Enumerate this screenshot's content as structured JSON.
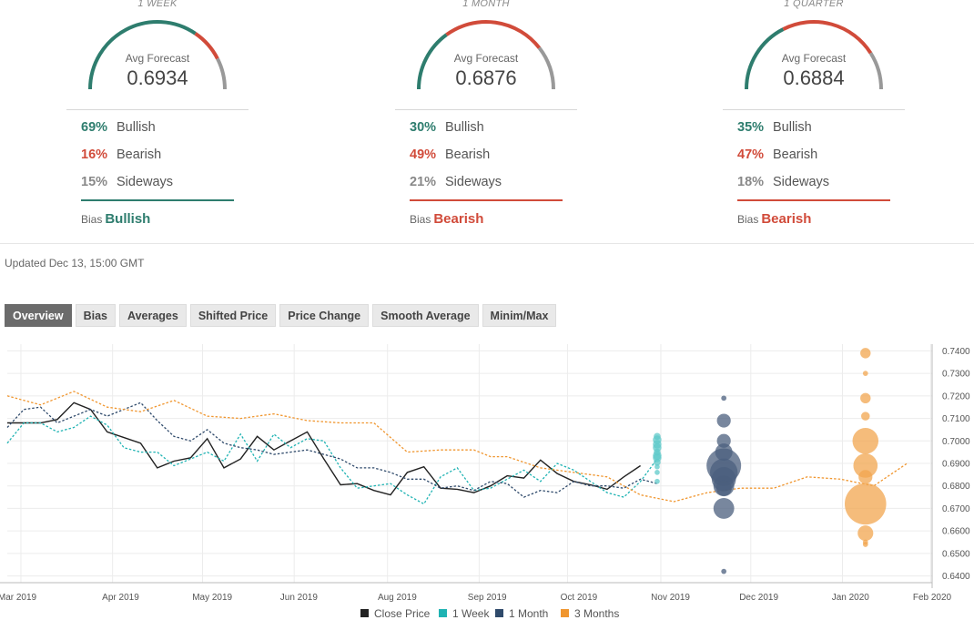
{
  "forecasts": [
    {
      "period": "1 WEEK",
      "avg_label": "Avg Forecast",
      "avg_value": "0.6934",
      "gauge": {
        "bullish": 69,
        "bearish": 16,
        "sideways": 15
      },
      "stats": [
        {
          "pct": "69%",
          "label": "Bullish"
        },
        {
          "pct": "16%",
          "label": "Bearish"
        },
        {
          "pct": "15%",
          "label": "Sideways"
        }
      ],
      "bias_label": "Bias",
      "bias_value": "Bullish",
      "bias_color": "#2e7d6e"
    },
    {
      "period": "1 MONTH",
      "avg_label": "Avg Forecast",
      "avg_value": "0.6876",
      "gauge": {
        "bullish": 30,
        "bearish": 49,
        "sideways": 21
      },
      "stats": [
        {
          "pct": "30%",
          "label": "Bullish"
        },
        {
          "pct": "49%",
          "label": "Bearish"
        },
        {
          "pct": "21%",
          "label": "Sideways"
        }
      ],
      "bias_label": "Bias",
      "bias_value": "Bearish",
      "bias_color": "#d14b3a"
    },
    {
      "period": "1 QUARTER",
      "avg_label": "Avg Forecast",
      "avg_value": "0.6884",
      "gauge": {
        "bullish": 35,
        "bearish": 47,
        "sideways": 18
      },
      "stats": [
        {
          "pct": "35%",
          "label": "Bullish"
        },
        {
          "pct": "47%",
          "label": "Bearish"
        },
        {
          "pct": "18%",
          "label": "Sideways"
        }
      ],
      "bias_label": "Bias",
      "bias_value": "Bearish",
      "bias_color": "#d14b3a"
    }
  ],
  "colors": {
    "bullish": "#2e7d6e",
    "bearish": "#d14b3a",
    "sideways": "#999999"
  },
  "updated": "Updated Dec 13, 15:00 GMT",
  "tabs": [
    "Overview",
    "Bias",
    "Averages",
    "Shifted Price",
    "Price Change",
    "Smooth Average",
    "Minim/Max"
  ],
  "active_tab": "Overview",
  "chart_data": {
    "type": "line",
    "x_ticks": [
      "Mar 2019",
      "Apr 2019",
      "May 2019",
      "Jun 2019",
      "Aug 2019",
      "Sep 2019",
      "Oct 2019",
      "Nov 2019",
      "Dec 2019",
      "Jan 2020",
      "Feb 2020"
    ],
    "y_ticks": [
      "0.7400",
      "0.7300",
      "0.7200",
      "0.7100",
      "0.7000",
      "0.6900",
      "0.6800",
      "0.6700",
      "0.6600",
      "0.6500",
      "0.6400"
    ],
    "ylim": [
      0.637,
      0.743
    ],
    "grid": true,
    "legend_position": "bottom",
    "series": [
      {
        "name": "Close Price",
        "color": "#222222",
        "style": "solid",
        "points": [
          [
            0,
            0.708
          ],
          [
            1,
            0.708
          ],
          [
            2,
            0.708
          ],
          [
            3,
            0.7095
          ],
          [
            4,
            0.717
          ],
          [
            5,
            0.714
          ],
          [
            6,
            0.704
          ],
          [
            7,
            0.7015
          ],
          [
            8,
            0.699
          ],
          [
            9,
            0.688
          ],
          [
            10,
            0.691
          ],
          [
            11,
            0.6925
          ],
          [
            12,
            0.701
          ],
          [
            13,
            0.688
          ],
          [
            14,
            0.692
          ],
          [
            15,
            0.702
          ],
          [
            16,
            0.696
          ],
          [
            17,
            0.7
          ],
          [
            18,
            0.704
          ],
          [
            19,
            0.692
          ],
          [
            20,
            0.6805
          ],
          [
            21,
            0.681
          ],
          [
            22,
            0.678
          ],
          [
            23,
            0.676
          ],
          [
            24,
            0.686
          ],
          [
            25,
            0.6885
          ],
          [
            26,
            0.679
          ],
          [
            27,
            0.6785
          ],
          [
            28,
            0.677
          ],
          [
            29,
            0.68
          ],
          [
            30,
            0.6845
          ],
          [
            31,
            0.6835
          ],
          [
            32,
            0.6915
          ],
          [
            33,
            0.6855
          ],
          [
            34,
            0.682
          ],
          [
            35,
            0.6805
          ],
          [
            36,
            0.6785
          ],
          [
            37,
            0.684
          ],
          [
            38,
            0.689
          ]
        ]
      },
      {
        "name": "1 Week",
        "color": "#1fb3b3",
        "style": "dotted",
        "points": [
          [
            0,
            0.699
          ],
          [
            1,
            0.708
          ],
          [
            2,
            0.708
          ],
          [
            3,
            0.704
          ],
          [
            4,
            0.706
          ],
          [
            5,
            0.711
          ],
          [
            6,
            0.707
          ],
          [
            7,
            0.697
          ],
          [
            8,
            0.695
          ],
          [
            9,
            0.695
          ],
          [
            10,
            0.689
          ],
          [
            11,
            0.692
          ],
          [
            12,
            0.695
          ],
          [
            13,
            0.691
          ],
          [
            14,
            0.703
          ],
          [
            15,
            0.691
          ],
          [
            16,
            0.703
          ],
          [
            17,
            0.697
          ],
          [
            18,
            0.701
          ],
          [
            19,
            0.7
          ],
          [
            20,
            0.688
          ],
          [
            21,
            0.679
          ],
          [
            22,
            0.68
          ],
          [
            23,
            0.681
          ],
          [
            24,
            0.676
          ],
          [
            25,
            0.672
          ],
          [
            26,
            0.684
          ],
          [
            27,
            0.688
          ],
          [
            28,
            0.678
          ],
          [
            29,
            0.679
          ],
          [
            30,
            0.683
          ],
          [
            31,
            0.687
          ],
          [
            32,
            0.682
          ],
          [
            33,
            0.69
          ],
          [
            34,
            0.687
          ],
          [
            35,
            0.682
          ],
          [
            36,
            0.677
          ],
          [
            37,
            0.675
          ],
          [
            38,
            0.682
          ],
          [
            39,
            0.692
          ]
        ]
      },
      {
        "name": "1 Month",
        "color": "#2f4a6b",
        "style": "dotted",
        "points": [
          [
            0,
            0.706
          ],
          [
            1,
            0.714
          ],
          [
            2,
            0.715
          ],
          [
            3,
            0.708
          ],
          [
            4,
            0.711
          ],
          [
            5,
            0.714
          ],
          [
            6,
            0.711
          ],
          [
            7,
            0.714
          ],
          [
            8,
            0.717
          ],
          [
            9,
            0.709
          ],
          [
            10,
            0.702
          ],
          [
            11,
            0.7
          ],
          [
            12,
            0.705
          ],
          [
            13,
            0.699
          ],
          [
            14,
            0.697
          ],
          [
            15,
            0.696
          ],
          [
            16,
            0.694
          ],
          [
            17,
            0.695
          ],
          [
            18,
            0.696
          ],
          [
            19,
            0.694
          ],
          [
            20,
            0.692
          ],
          [
            21,
            0.688
          ],
          [
            22,
            0.688
          ],
          [
            23,
            0.686
          ],
          [
            24,
            0.683
          ],
          [
            25,
            0.683
          ],
          [
            26,
            0.679
          ],
          [
            27,
            0.68
          ],
          [
            28,
            0.678
          ],
          [
            29,
            0.682
          ],
          [
            30,
            0.681
          ],
          [
            31,
            0.675
          ],
          [
            32,
            0.678
          ],
          [
            33,
            0.677
          ],
          [
            34,
            0.682
          ],
          [
            35,
            0.68
          ],
          [
            36,
            0.68
          ],
          [
            37,
            0.679
          ],
          [
            38,
            0.683
          ],
          [
            39,
            0.681
          ]
        ]
      },
      {
        "name": "3 Months",
        "color": "#f0962f",
        "style": "dotted",
        "points": [
          [
            0,
            0.72
          ],
          [
            2,
            0.716
          ],
          [
            4,
            0.722
          ],
          [
            6,
            0.715
          ],
          [
            8,
            0.713
          ],
          [
            10,
            0.718
          ],
          [
            12,
            0.711
          ],
          [
            14,
            0.71
          ],
          [
            16,
            0.712
          ],
          [
            18,
            0.709
          ],
          [
            20,
            0.708
          ],
          [
            22,
            0.708
          ],
          [
            24,
            0.695
          ],
          [
            26,
            0.696
          ],
          [
            28,
            0.696
          ],
          [
            29,
            0.693
          ],
          [
            30,
            0.693
          ],
          [
            32,
            0.688
          ],
          [
            34,
            0.686
          ],
          [
            36,
            0.684
          ],
          [
            38,
            0.676
          ],
          [
            40,
            0.673
          ],
          [
            42,
            0.677
          ],
          [
            44,
            0.679
          ],
          [
            46,
            0.679
          ],
          [
            48,
            0.684
          ],
          [
            50,
            0.683
          ],
          [
            52,
            0.68
          ],
          [
            54,
            0.69
          ]
        ]
      }
    ],
    "bubbles": [
      {
        "series": "1 Week",
        "x": 39,
        "values": [
          0.702,
          0.7005,
          0.6985,
          0.697,
          0.695,
          0.6935,
          0.6925,
          0.6905,
          0.6885,
          0.686,
          0.682
        ],
        "sizes": [
          4,
          5,
          5,
          5,
          4,
          5,
          5,
          4,
          3,
          3,
          3
        ]
      },
      {
        "series": "1 Month",
        "x": 43,
        "values": [
          0.719,
          0.709,
          0.7,
          0.695,
          0.689,
          0.686,
          0.683,
          0.68,
          0.679,
          0.67,
          0.642
        ],
        "sizes": [
          3,
          8,
          8,
          10,
          20,
          16,
          14,
          12,
          9,
          12,
          3
        ]
      },
      {
        "series": "3 Months",
        "x": 51.5,
        "values": [
          0.739,
          0.73,
          0.719,
          0.711,
          0.7,
          0.689,
          0.684,
          0.672,
          0.659,
          0.655,
          0.654
        ],
        "sizes": [
          6,
          3,
          6,
          5,
          15,
          14,
          8,
          24,
          9,
          3,
          3
        ]
      }
    ]
  },
  "legend": [
    {
      "label": "Close Price",
      "color": "#222222"
    },
    {
      "label": "1 Week",
      "color": "#1fb3b3"
    },
    {
      "label": "1 Month",
      "color": "#2f4a6b"
    },
    {
      "label": "3 Months",
      "color": "#f0962f"
    }
  ]
}
